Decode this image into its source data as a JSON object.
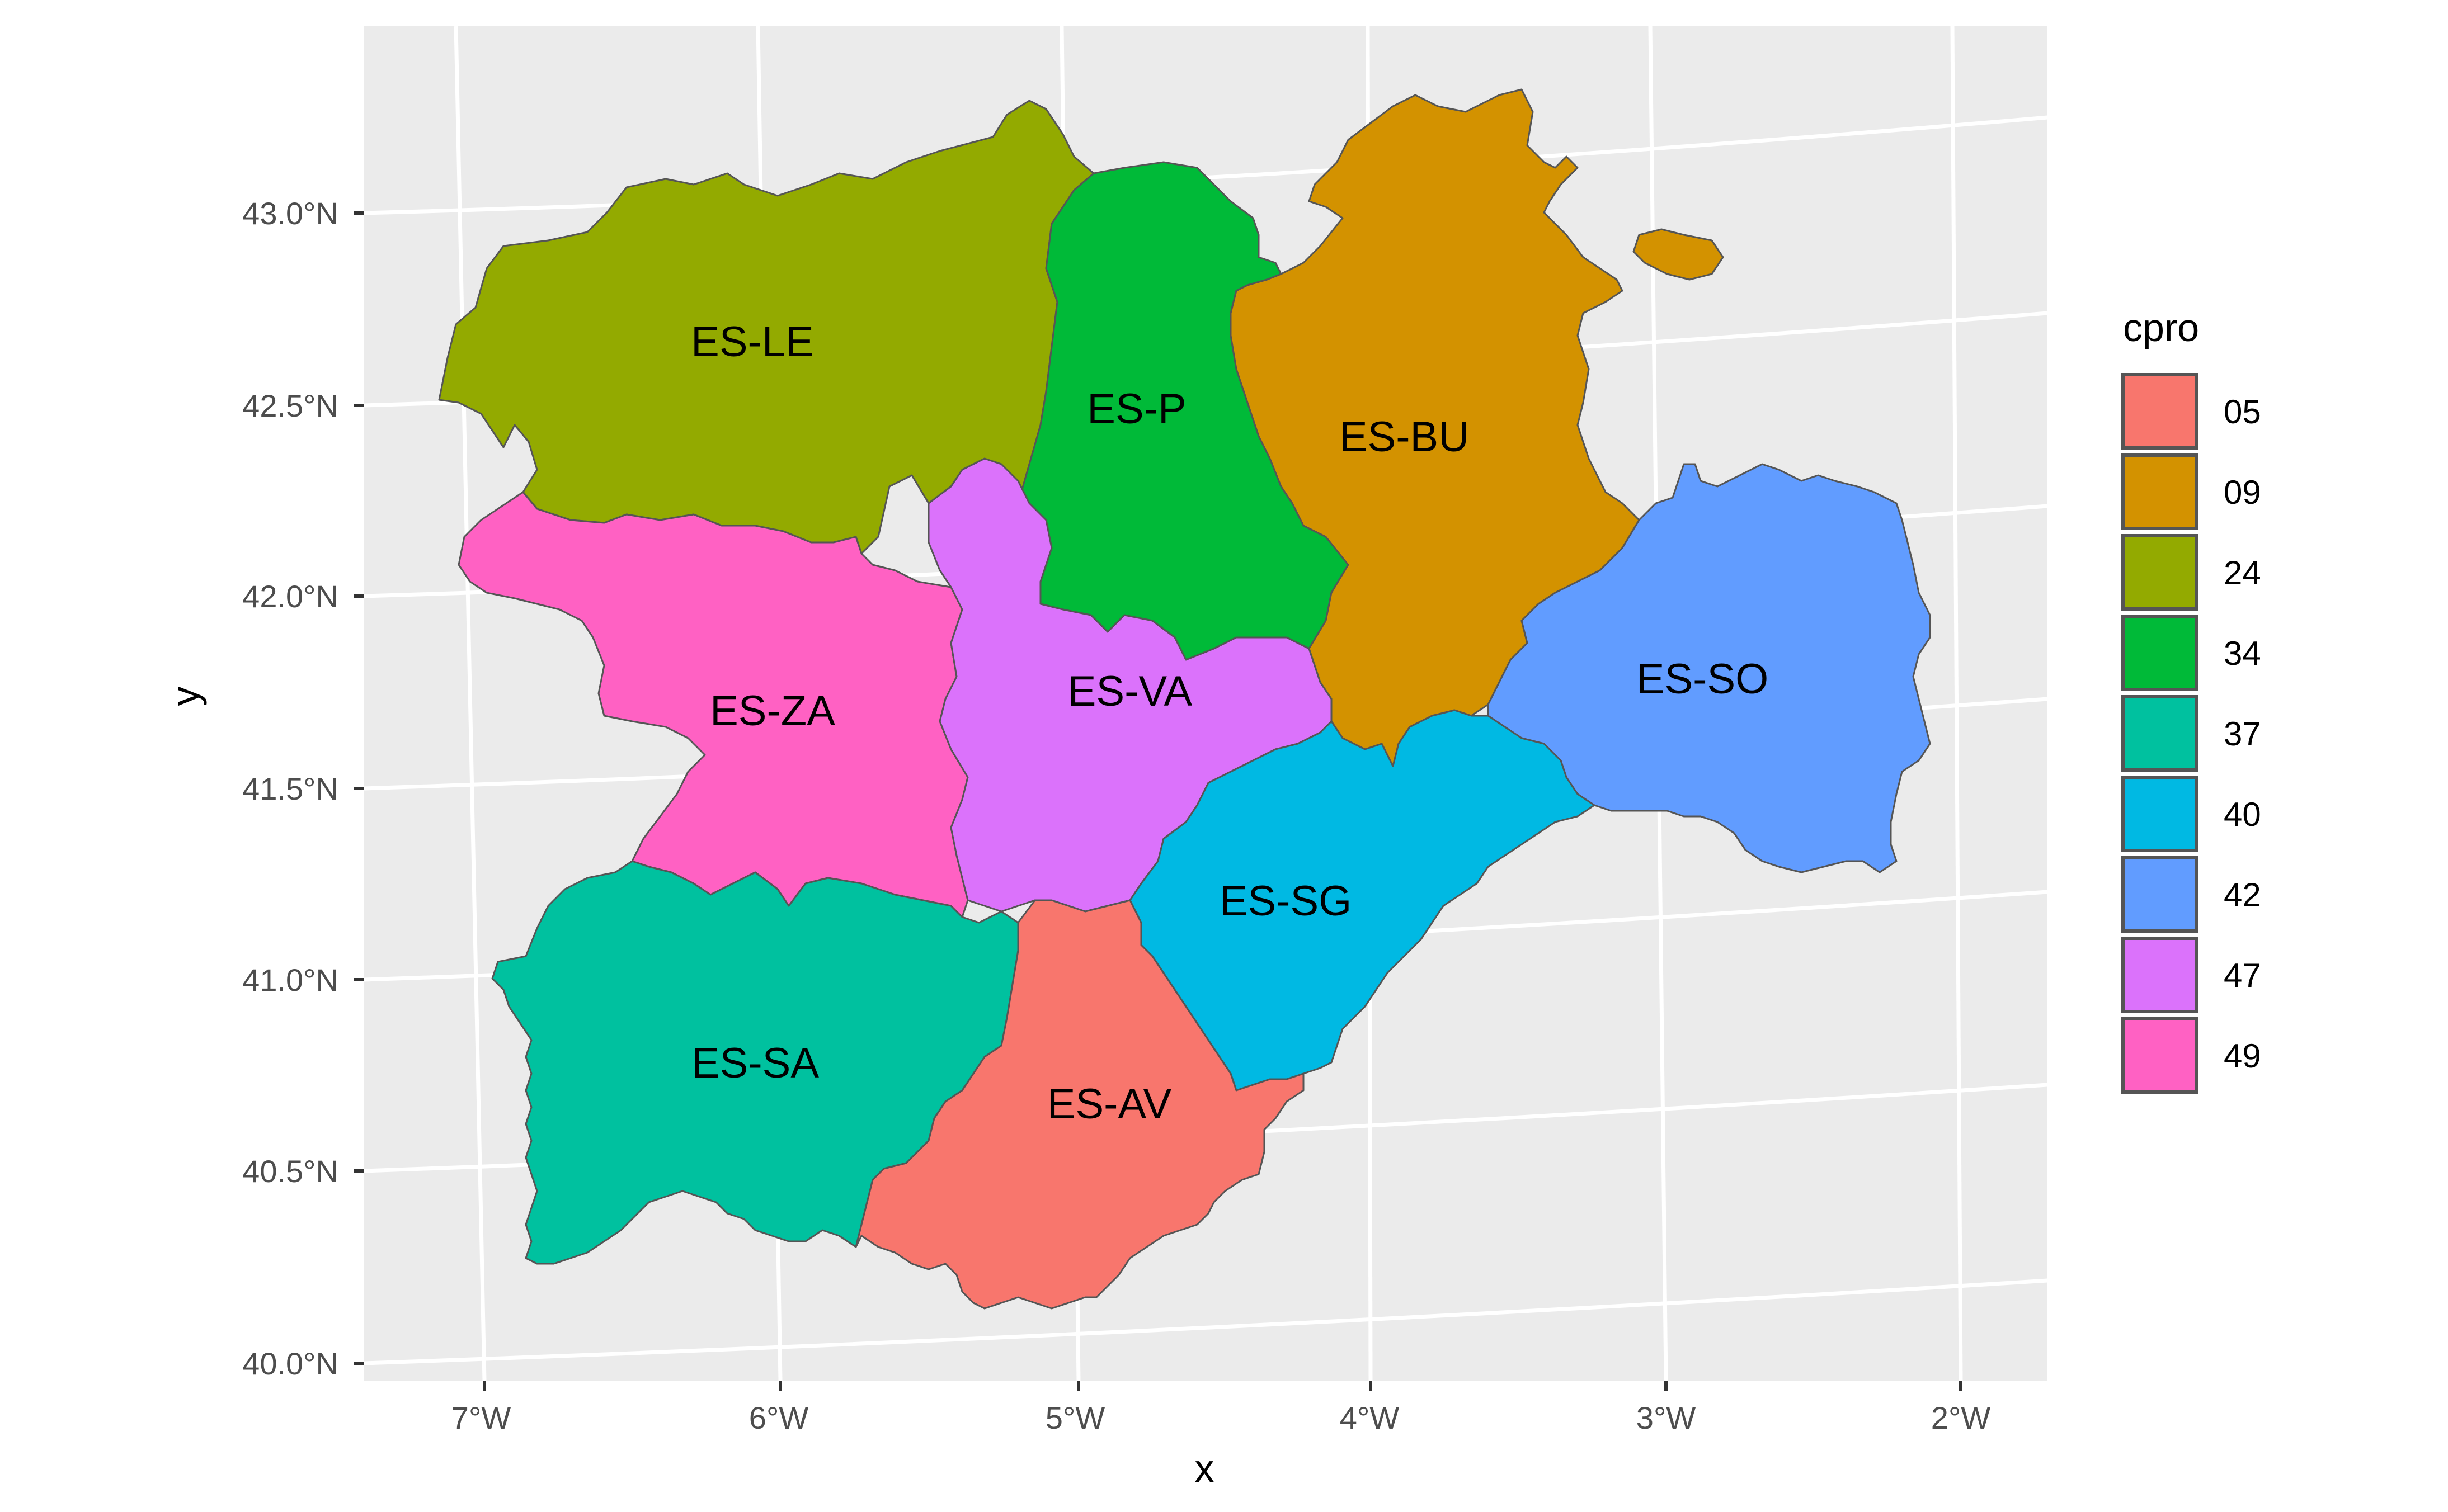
{
  "axes": {
    "x_title": "x",
    "y_title": "y",
    "x_ticks": [
      "7°W",
      "6°W",
      "5°W",
      "4°W",
      "3°W",
      "2°W"
    ],
    "y_ticks": [
      "43.0°N",
      "42.5°N",
      "42.0°N",
      "41.5°N",
      "41.0°N",
      "40.5°N",
      "40.0°N"
    ]
  },
  "regions": [
    {
      "label": "ES-AV",
      "code": "05",
      "color": "#F8766D"
    },
    {
      "label": "ES-BU",
      "code": "09",
      "color": "#D39200"
    },
    {
      "label": "ES-LE",
      "code": "24",
      "color": "#93AA00"
    },
    {
      "label": "ES-P",
      "code": "34",
      "color": "#00BA38"
    },
    {
      "label": "ES-SA",
      "code": "37",
      "color": "#00C19F"
    },
    {
      "label": "ES-SG",
      "code": "40",
      "color": "#00B9E3"
    },
    {
      "label": "ES-SO",
      "code": "42",
      "color": "#619CFF"
    },
    {
      "label": "ES-VA",
      "code": "47",
      "color": "#DB72FB"
    },
    {
      "label": "ES-ZA",
      "code": "49",
      "color": "#FF61C3"
    }
  ],
  "legend": {
    "title": "cpro",
    "items": [
      "05",
      "09",
      "24",
      "34",
      "37",
      "40",
      "42",
      "47",
      "49"
    ]
  },
  "colors": {
    "panel_background": "#EBEBEB",
    "grid": "#FFFFFF",
    "region_border": "#555555"
  }
}
